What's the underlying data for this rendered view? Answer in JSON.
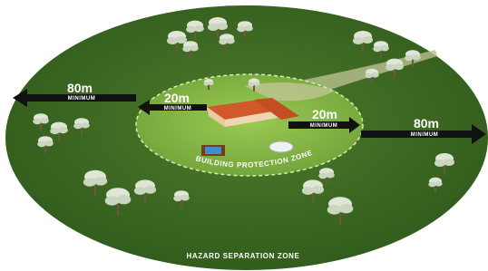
{
  "distances": [
    {
      "value": "80m",
      "note": "MINIMUM"
    },
    {
      "value": "20m",
      "note": "MINIMUM"
    },
    {
      "value": "20m",
      "note": "MINIMUM"
    },
    {
      "value": "80m",
      "note": "MINIMUM"
    }
  ],
  "zones": {
    "inner": "BUILDING PROTECTION ZONE",
    "outer": "HAZARD SEPARATION ZONE"
  }
}
